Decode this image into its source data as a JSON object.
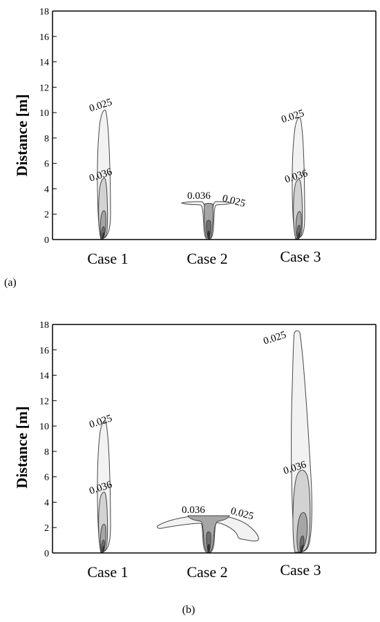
{
  "chart_data": [
    {
      "type": "contour",
      "panel_label": "(a)",
      "ylabel": "Distance [m]",
      "ylim": [
        0,
        18
      ],
      "y_ticks": [
        "0",
        "2",
        "4",
        "6",
        "8",
        "10",
        "12",
        "14",
        "16",
        "18"
      ],
      "categories": [
        "Case 1",
        "Case 2",
        "Case 3"
      ],
      "series": [
        {
          "case": "Case 1",
          "levels": [
            {
              "value": 0.025,
              "label": "0.025",
              "height": 10.1
            },
            {
              "value": 0.036,
              "label": "0.036",
              "height": 4.8
            },
            {
              "height": 2.2
            },
            {
              "height": 0.9
            },
            {
              "height": 0.4
            }
          ]
        },
        {
          "case": "Case 2",
          "levels": [
            {
              "value": 0.025,
              "label": "0.025",
              "height": 2.9
            },
            {
              "value": 0.036,
              "label": "0.036",
              "height": 2.8
            },
            {
              "height": 1.3
            },
            {
              "height": 0.5
            }
          ]
        },
        {
          "case": "Case 3",
          "levels": [
            {
              "value": 0.025,
              "label": "0.025",
              "height": 9.6
            },
            {
              "value": 0.036,
              "label": "0.036",
              "height": 4.7
            },
            {
              "height": 2.1
            },
            {
              "height": 1.0
            },
            {
              "height": 0.4
            }
          ]
        }
      ]
    },
    {
      "type": "contour",
      "panel_label": "(b)",
      "ylabel": "Distance [m]",
      "ylim": [
        0,
        18
      ],
      "y_ticks": [
        "0",
        "2",
        "4",
        "6",
        "8",
        "10",
        "12",
        "14",
        "16",
        "18"
      ],
      "categories": [
        "Case 1",
        "Case 2",
        "Case 3"
      ],
      "series": [
        {
          "case": "Case 1",
          "levels": [
            {
              "value": 0.025,
              "label": "0.025",
              "height": 10.1
            },
            {
              "value": 0.036,
              "label": "0.036",
              "height": 4.8
            },
            {
              "height": 2.2
            },
            {
              "height": 0.9
            },
            {
              "height": 0.4
            }
          ]
        },
        {
          "case": "Case 2",
          "levels": [
            {
              "value": 0.025,
              "label": "0.025",
              "height": 2.9
            },
            {
              "value": 0.036,
              "label": "0.036",
              "height": 2.9
            },
            {
              "height": 1.7
            },
            {
              "height": 0.5
            }
          ]
        },
        {
          "case": "Case 3",
          "levels": [
            {
              "value": 0.025,
              "label": "0.025",
              "height": 17.5
            },
            {
              "value": 0.036,
              "label": "0.036",
              "height": 6.6
            },
            {
              "height": 3.0
            },
            {
              "height": 1.3
            },
            {
              "height": 0.5
            }
          ]
        }
      ]
    }
  ],
  "colors": {
    "level_fills": [
      "#f2f2f2",
      "#d2d2d2",
      "#a6a6a6",
      "#6e6e6e",
      "#333333"
    ],
    "stroke": "#444444"
  }
}
